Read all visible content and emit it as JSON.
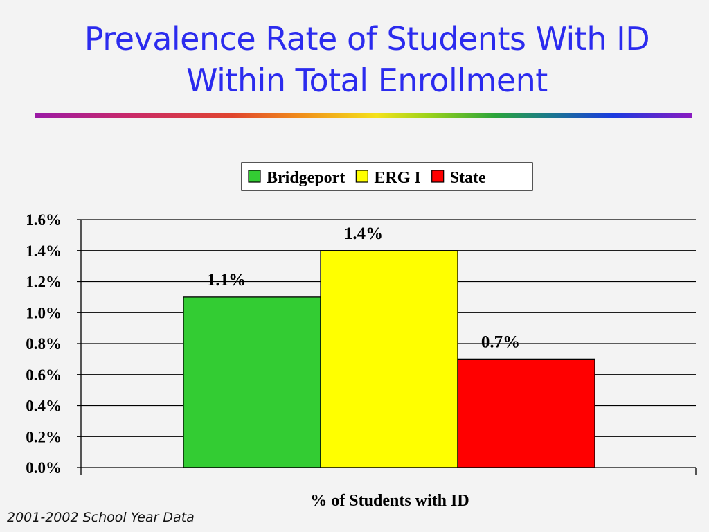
{
  "slide": {
    "title_line1": "Prevalence Rate of Students With ID",
    "title_line2": "Within Total Enrollment",
    "footer": "2001-2002 School Year Data"
  },
  "colors": {
    "title": "#2b2bee",
    "background": "#f3f3f3"
  },
  "chart_data": {
    "type": "bar",
    "title": "",
    "xlabel": "% of Students with ID",
    "ylabel": "",
    "ylim": [
      0,
      1.6
    ],
    "y_ticks": [
      "0.0%",
      "0.2%",
      "0.4%",
      "0.6%",
      "0.8%",
      "1.0%",
      "1.2%",
      "1.4%",
      "1.6%"
    ],
    "grid": true,
    "legend_position": "top-center",
    "categories": [
      "% of Students with ID"
    ],
    "series": [
      {
        "name": "Bridgeport",
        "values": [
          1.1
        ],
        "label": "1.1%",
        "color": "#33cc33"
      },
      {
        "name": "ERG I",
        "values": [
          1.4
        ],
        "label": "1.4%",
        "color": "#ffff00"
      },
      {
        "name": "State",
        "values": [
          0.7
        ],
        "label": "0.7%",
        "color": "#ff0000"
      }
    ]
  }
}
